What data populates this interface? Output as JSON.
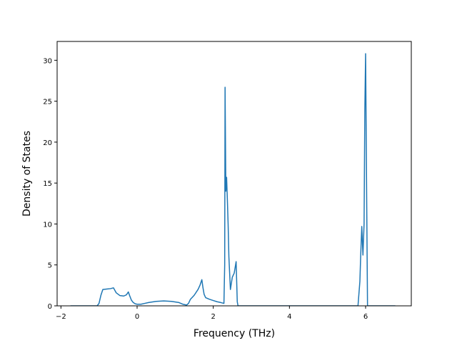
{
  "chart_data": {
    "type": "line",
    "title": "",
    "xlabel": "Frequency (THz)",
    "ylabel": "Density of States",
    "xlim": [
      -2.1,
      7.2
    ],
    "ylim": [
      0,
      32.3
    ],
    "xticks": [
      -2,
      0,
      2,
      4,
      6
    ],
    "yticks": [
      0,
      5,
      10,
      15,
      20,
      25,
      30
    ],
    "grid": false,
    "legend": "none",
    "colors": {
      "line": "#1f77b4",
      "axes": "#000000",
      "background": "#ffffff"
    },
    "series": [
      {
        "x": [
          -1.75,
          -1.05,
          -1.0,
          -0.95,
          -0.9,
          -0.8,
          -0.7,
          -0.62,
          -0.55,
          -0.45,
          -0.35,
          -0.28,
          -0.23,
          -0.2,
          -0.15,
          -0.1,
          -0.05,
          0.0,
          0.1,
          0.2,
          0.3,
          0.5,
          0.7,
          0.9,
          1.1,
          1.2,
          1.3,
          1.35,
          1.4,
          1.5,
          1.6,
          1.65,
          1.7,
          1.73,
          1.76,
          1.8,
          1.9,
          2.0,
          2.1,
          2.2,
          2.28,
          2.3,
          2.31,
          2.33,
          2.35,
          2.37,
          2.39,
          2.41,
          2.45,
          2.5,
          2.55,
          2.6,
          2.63,
          2.65,
          2.67,
          2.7,
          3.0,
          4.0,
          5.0,
          5.8,
          5.85,
          5.87,
          5.9,
          5.93,
          5.96,
          5.98,
          6.0,
          6.03,
          6.05,
          6.07,
          6.1,
          6.5,
          6.78
        ],
        "y": [
          0,
          0,
          0.3,
          1.3,
          2.0,
          2.05,
          2.1,
          2.2,
          1.6,
          1.25,
          1.2,
          1.35,
          1.7,
          1.3,
          0.7,
          0.4,
          0.25,
          0.2,
          0.2,
          0.3,
          0.4,
          0.55,
          0.6,
          0.55,
          0.4,
          0.2,
          0.1,
          0.3,
          0.8,
          1.3,
          2.0,
          2.5,
          3.2,
          2.2,
          1.4,
          1.0,
          0.8,
          0.65,
          0.5,
          0.4,
          0.3,
          5.0,
          26.7,
          14.0,
          15.7,
          13.0,
          10.0,
          6.0,
          2.0,
          3.5,
          4.0,
          5.4,
          0.5,
          0,
          0,
          0,
          0,
          0,
          0,
          0,
          3.0,
          6.0,
          9.7,
          6.2,
          10.0,
          24.0,
          30.8,
          12.0,
          0,
          0,
          0,
          0,
          0
        ]
      }
    ]
  }
}
